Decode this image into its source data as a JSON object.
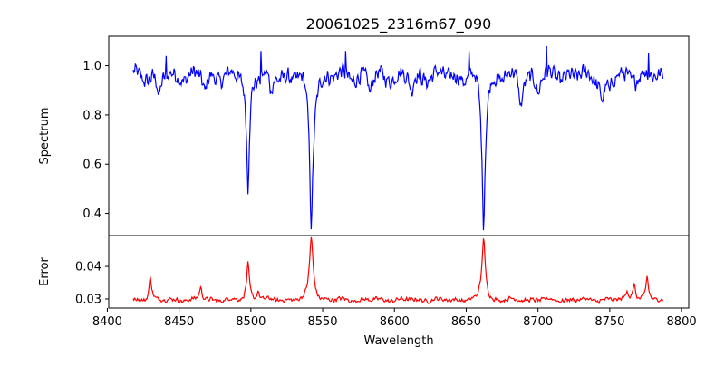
{
  "chart_data": {
    "type": "line",
    "title": "20061025_2316m67_090",
    "xlabel": "Wavelength",
    "xlim": [
      8401,
      8805
    ],
    "x_ticks": [
      8400,
      8450,
      8500,
      8550,
      8600,
      8650,
      8700,
      8750,
      8800
    ],
    "x_tick_labels": [
      "8400",
      "8450",
      "8500",
      "8550",
      "8600",
      "8650",
      "8700",
      "8750",
      "8800"
    ],
    "x_range": [
      8418,
      8787
    ],
    "panels": [
      {
        "name": "spectrum",
        "ylabel": "Spectrum",
        "ylim": [
          0.31,
          1.12
        ],
        "y_ticks": [
          0.4,
          0.6,
          0.8,
          1.0
        ],
        "y_tick_labels": [
          "0.4",
          "0.6",
          "0.8",
          "1.0"
        ],
        "color": "#0000ff",
        "baseline": 0.96,
        "noise": 0.04,
        "features": [
          {
            "center": 8498.0,
            "depth": 0.46,
            "width": 0.9
          },
          {
            "center": 8542.1,
            "depth": 0.6,
            "width": 1.2
          },
          {
            "center": 8662.1,
            "depth": 0.59,
            "width": 1.1
          },
          {
            "center": 8436.0,
            "depth": 0.1,
            "width": 1.0
          },
          {
            "center": 8468.0,
            "depth": 0.07,
            "width": 1.0
          },
          {
            "center": 8514.0,
            "depth": 0.08,
            "width": 1.0
          },
          {
            "center": 8583.0,
            "depth": 0.07,
            "width": 1.0
          },
          {
            "center": 8612.0,
            "depth": 0.07,
            "width": 1.0
          },
          {
            "center": 8688.0,
            "depth": 0.12,
            "width": 1.0
          },
          {
            "center": 8700.0,
            "depth": 0.07,
            "width": 1.0
          },
          {
            "center": 8745.0,
            "depth": 0.09,
            "width": 1.5
          },
          {
            "center": 8750.0,
            "depth": 0.07,
            "width": 1.0
          }
        ],
        "spikes": [
          {
            "x": 8706.0,
            "value": 1.08
          },
          {
            "x": 8507.0,
            "value": 1.06
          },
          {
            "x": 8441.0,
            "value": 1.04
          },
          {
            "x": 8566.0,
            "value": 1.06
          },
          {
            "x": 8652.0,
            "value": 1.06
          },
          {
            "x": 8777.0,
            "value": 1.05
          }
        ]
      },
      {
        "name": "error",
        "ylabel": "Error",
        "ylim": [
          0.0272,
          0.0495
        ],
        "y_ticks": [
          0.03,
          0.04
        ],
        "y_tick_labels": [
          "0.03",
          "0.04"
        ],
        "color": "#ff0000",
        "baseline": 0.0297,
        "noise": 0.0008,
        "features": [
          {
            "center": 8542.1,
            "depth": 0.0195,
            "width": 1.2
          },
          {
            "center": 8662.1,
            "depth": 0.0193,
            "width": 1.1
          },
          {
            "center": 8498.0,
            "depth": 0.0112,
            "width": 0.9
          },
          {
            "center": 8430.0,
            "depth": 0.0075,
            "width": 0.8
          },
          {
            "center": 8465.0,
            "depth": 0.004,
            "width": 0.8
          },
          {
            "center": 8776.0,
            "depth": 0.007,
            "width": 0.8
          },
          {
            "center": 8767.0,
            "depth": 0.0055,
            "width": 0.8
          },
          {
            "center": 8762.0,
            "depth": 0.003,
            "width": 0.8
          },
          {
            "center": 8505.0,
            "depth": 0.003,
            "width": 0.8
          }
        ]
      }
    ]
  }
}
